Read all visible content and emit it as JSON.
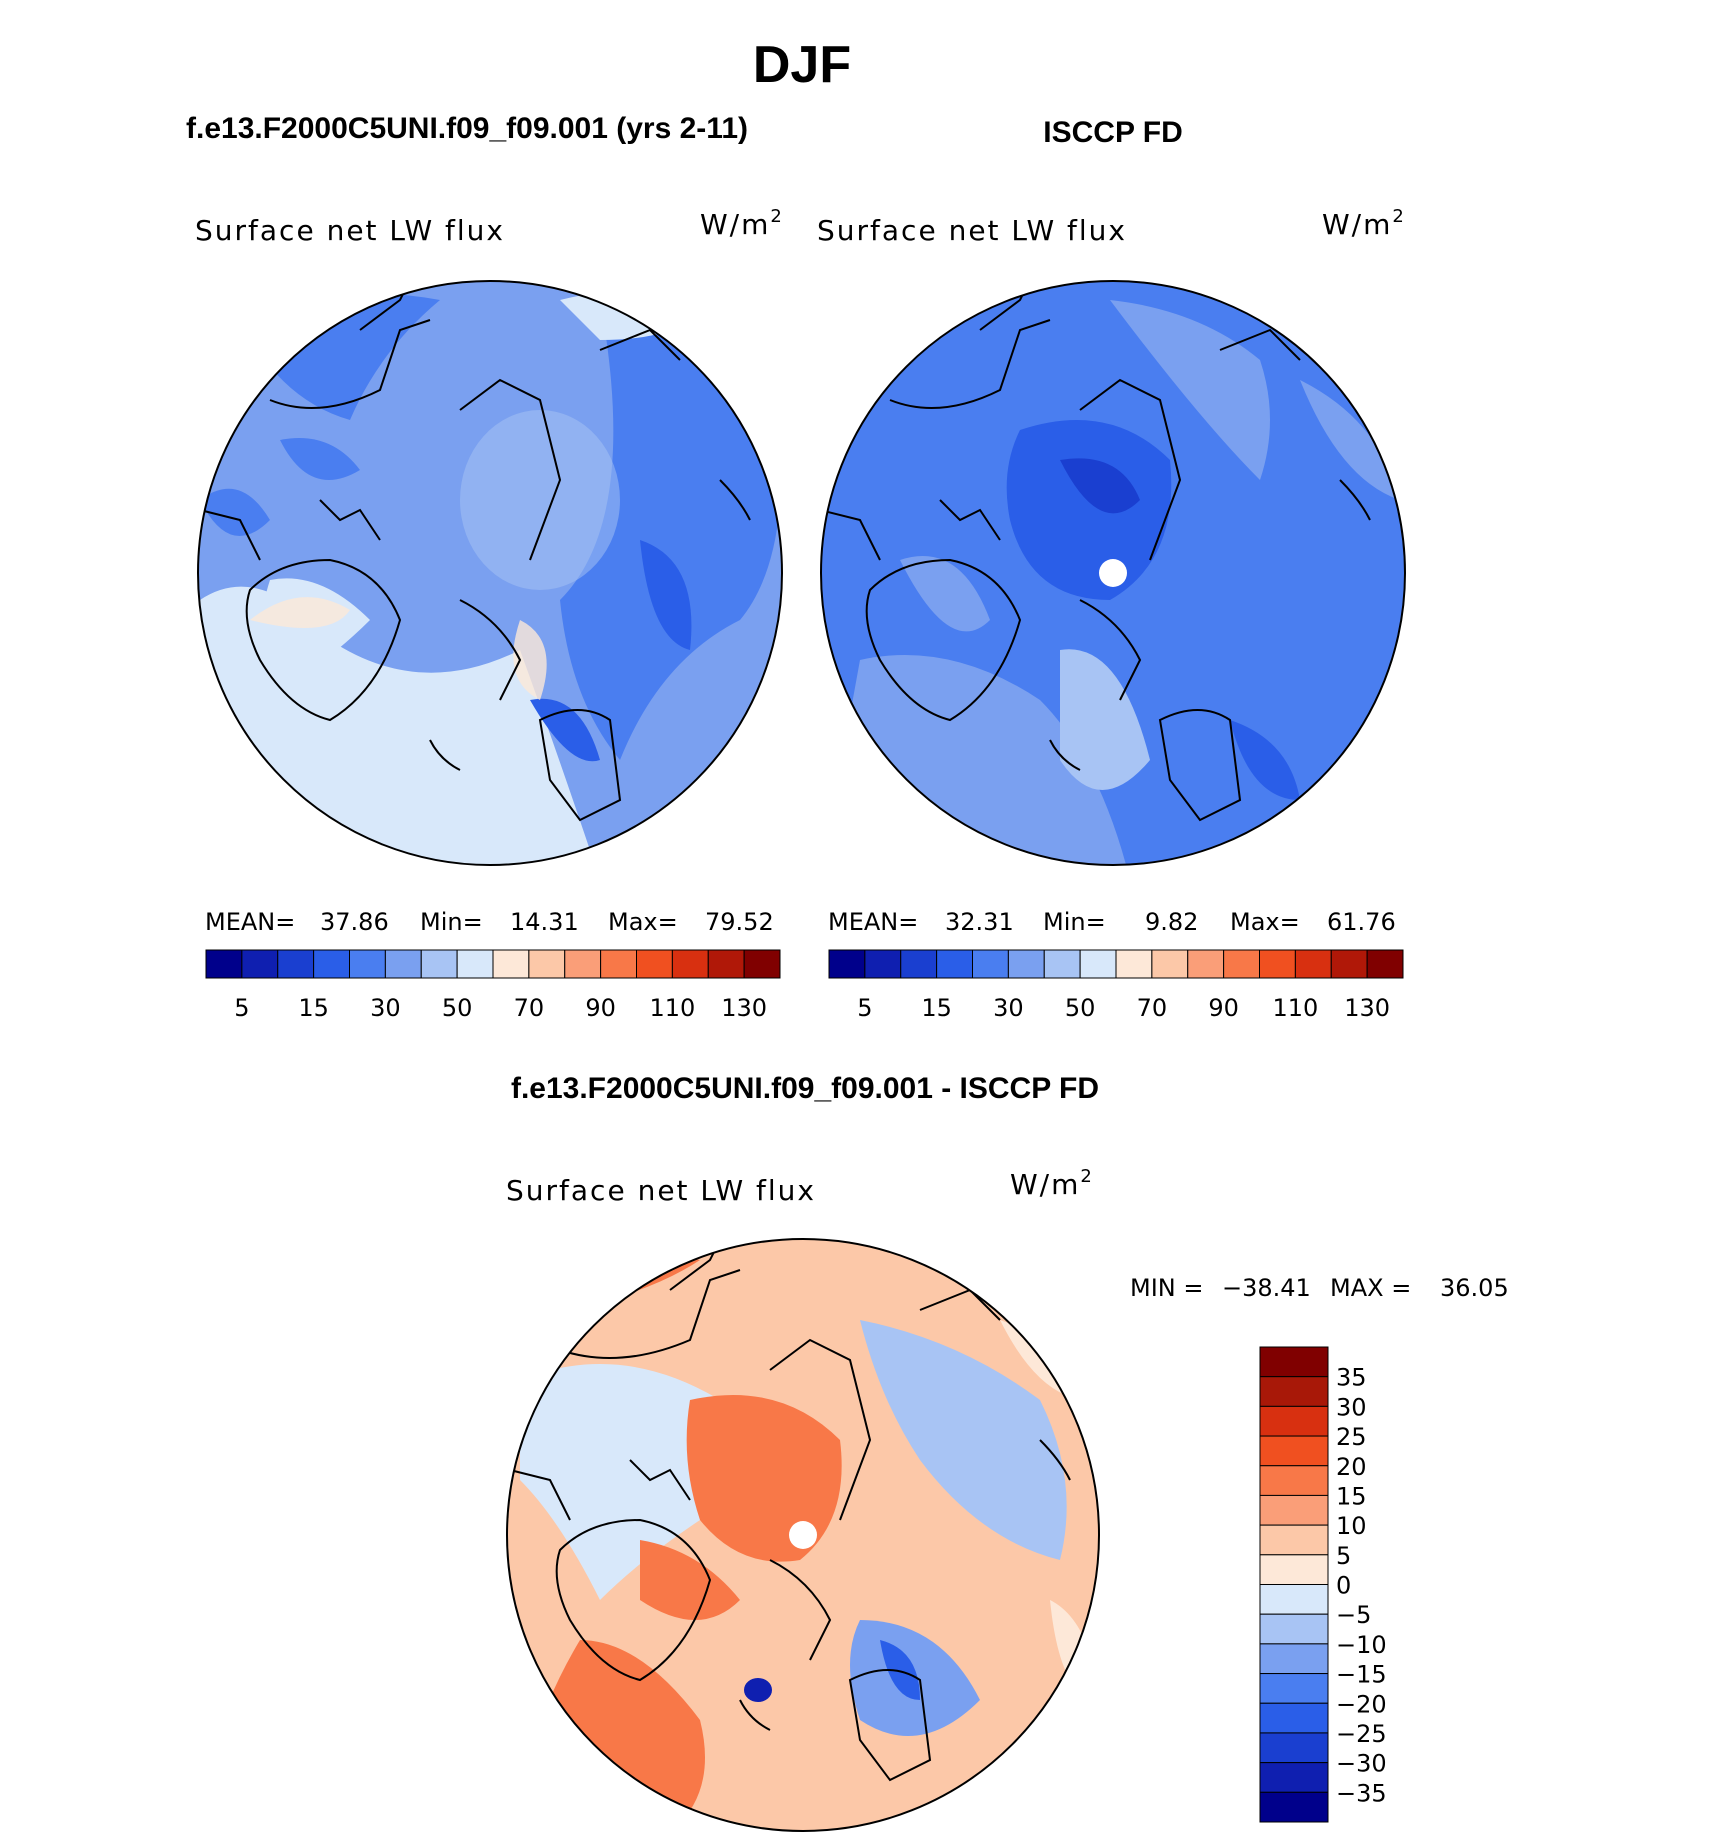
{
  "page": {
    "season": "DJF",
    "model_title": "f.e13.F2000C5UNI.f09_f09.001 (yrs 2-11)",
    "obs_title": "ISCCP FD",
    "diff_title": "f.e13.F2000C5UNI.f09_f09.001 - ISCCP FD"
  },
  "chart_data": [
    {
      "type": "heatmap",
      "projection": "north-polar-stereographic",
      "title": "f.e13.F2000C5UNI.f09_f09.001 (yrs 2-11)",
      "variable": "Surface net LW flux",
      "units": "W/m",
      "units_sup": "2",
      "stats": {
        "mean_label": "MEAN=",
        "mean": "37.86",
        "min_label": "Min=",
        "min": "14.31",
        "max_label": "Max=",
        "max": "79.52"
      },
      "colorbar": {
        "tick_labels": [
          "5",
          "15",
          "30",
          "50",
          "70",
          "90",
          "110",
          "130"
        ],
        "colors": [
          "#00008b",
          "#0f1fb0",
          "#1a3fd0",
          "#2a5ee8",
          "#4a7ef0",
          "#7aa0f0",
          "#a8c4f4",
          "#d8e8fa",
          "#fde8d8",
          "#fcc8a8",
          "#fa9e78",
          "#f87848",
          "#f05020",
          "#d83010",
          "#b01808",
          "#800000"
        ]
      }
    },
    {
      "type": "heatmap",
      "projection": "north-polar-stereographic",
      "title": "ISCCP FD",
      "variable": "Surface net LW flux",
      "units": "W/m",
      "units_sup": "2",
      "stats": {
        "mean_label": "MEAN=",
        "mean": "32.31",
        "min_label": "Min=",
        "min": "9.82",
        "max_label": "Max=",
        "max": "61.76"
      },
      "colorbar": {
        "tick_labels": [
          "5",
          "15",
          "30",
          "50",
          "70",
          "90",
          "110",
          "130"
        ],
        "colors": [
          "#00008b",
          "#0f1fb0",
          "#1a3fd0",
          "#2a5ee8",
          "#4a7ef0",
          "#7aa0f0",
          "#a8c4f4",
          "#d8e8fa",
          "#fde8d8",
          "#fcc8a8",
          "#fa9e78",
          "#f87848",
          "#f05020",
          "#d83010",
          "#b01808",
          "#800000"
        ]
      }
    },
    {
      "type": "heatmap",
      "projection": "north-polar-stereographic",
      "title": "f.e13.F2000C5UNI.f09_f09.001 - ISCCP FD",
      "variable": "Surface net LW flux",
      "units": "W/m",
      "units_sup": "2",
      "stats": {
        "min_label": "MIN =",
        "min": "−38.41",
        "max_label": "MAX =",
        "max": "36.05"
      },
      "colorbar": {
        "tick_labels": [
          "35",
          "30",
          "25",
          "20",
          "15",
          "10",
          "5",
          "0",
          "−5",
          "−10",
          "−15",
          "−20",
          "−25",
          "−30",
          "−35"
        ],
        "colors": [
          "#800000",
          "#a81808",
          "#d83010",
          "#f05020",
          "#f87848",
          "#fa9e78",
          "#fcc8a8",
          "#fde8d8",
          "#d8e8fa",
          "#a8c4f4",
          "#7aa0f0",
          "#4a7ef0",
          "#2a5ee8",
          "#1a3fd0",
          "#0f1fb0",
          "#00008b"
        ]
      }
    }
  ]
}
